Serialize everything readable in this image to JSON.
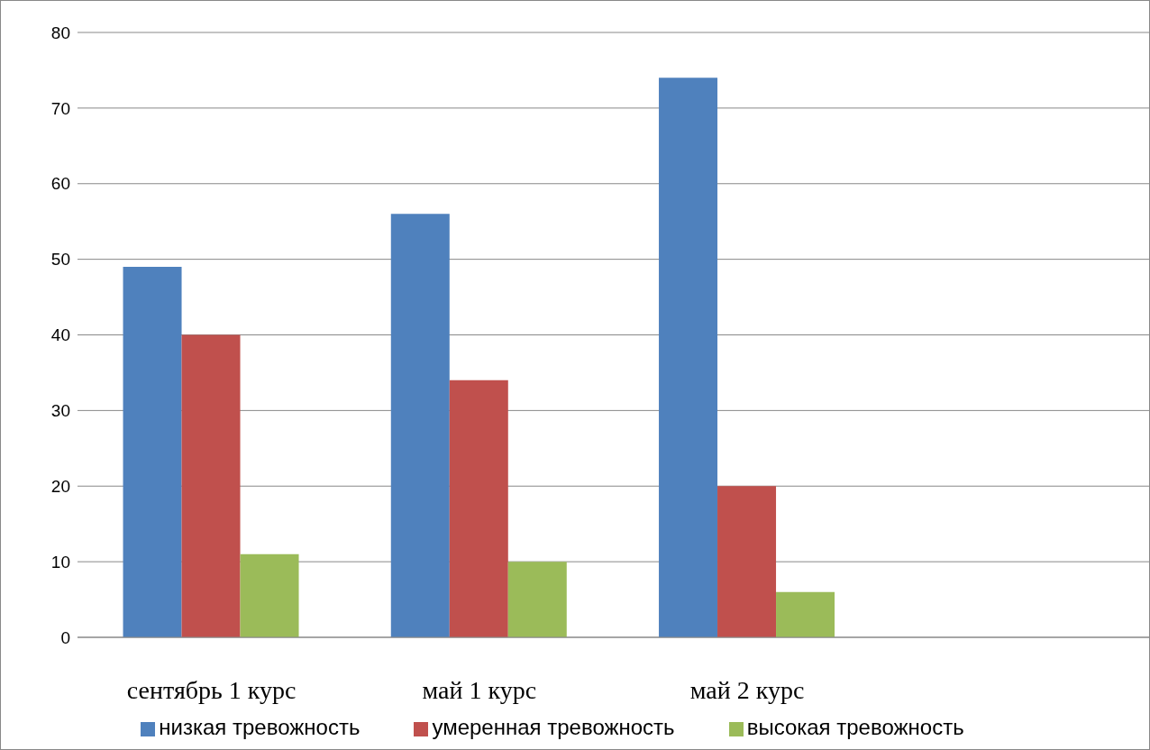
{
  "chart_data": {
    "type": "bar",
    "categories": [
      "сентябрь 1 курс",
      "май 1 курс",
      "май 2 курс",
      null
    ],
    "series": [
      {
        "name": "низкая тревожность",
        "color": "#4f81bd",
        "values": [
          49,
          56,
          74,
          null
        ]
      },
      {
        "name": "умеренная тревожность",
        "color": "#c0504d",
        "values": [
          40,
          34,
          20,
          null
        ]
      },
      {
        "name": "высокая тревожность",
        "color": "#9bbb59",
        "values": [
          11,
          10,
          6,
          null
        ]
      }
    ],
    "ylim": [
      0,
      80
    ],
    "yticks": [
      0,
      10,
      20,
      30,
      40,
      50,
      60,
      70,
      80
    ],
    "grid": "y",
    "legend": "bottom"
  }
}
